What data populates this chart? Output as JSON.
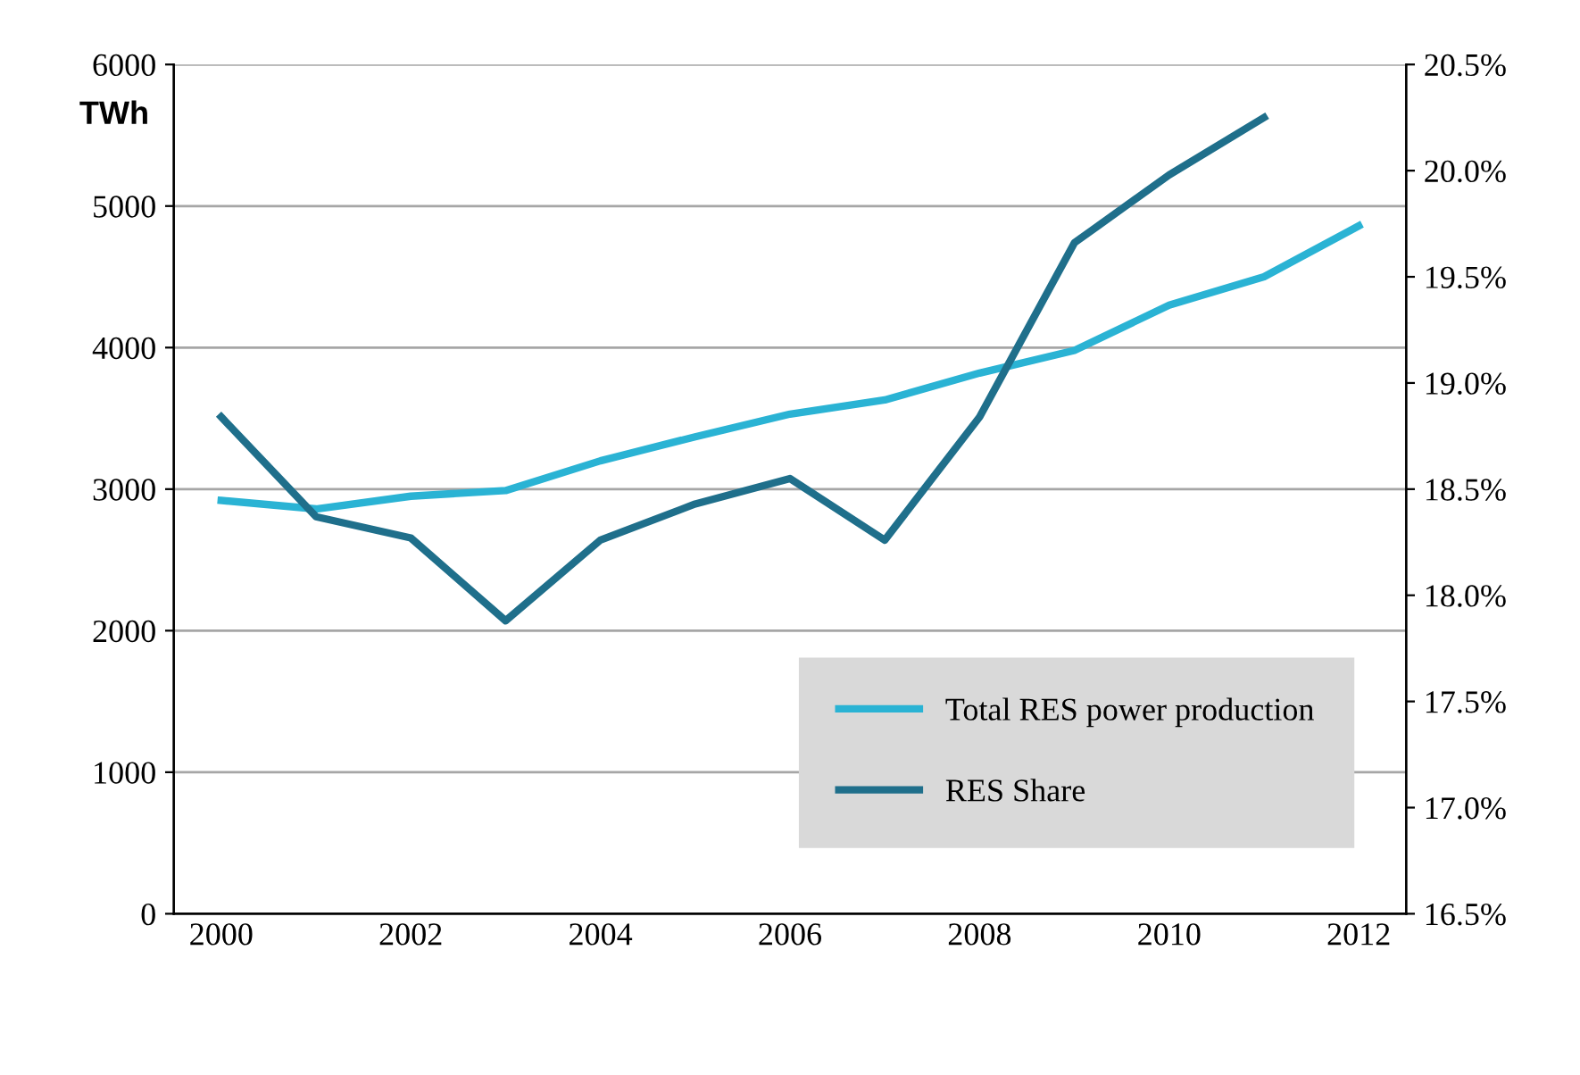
{
  "chart_data": {
    "type": "line",
    "ylabel": "TWh",
    "categories": [
      "2000",
      null,
      "2002",
      null,
      "2004",
      null,
      "2006",
      null,
      "2008",
      null,
      "2010",
      null,
      "2012"
    ],
    "series": [
      {
        "name": "Total RES power production",
        "color": "#2ab3d4",
        "values": [
          2920,
          2860,
          2950,
          2990,
          3200,
          3370,
          3530,
          3630,
          3820,
          3980,
          4300,
          4500,
          4860
        ]
      },
      {
        "name": "RES Share",
        "color": "#1f6f8b",
        "axis": "y2",
        "values": [
          18.84,
          18.37,
          18.27,
          17.88,
          18.26,
          18.43,
          18.55,
          18.26,
          18.84,
          19.66,
          19.98,
          20.25,
          null
        ]
      }
    ],
    "ylim": [
      0,
      6000
    ],
    "yticks": [
      0,
      1000,
      2000,
      3000,
      4000,
      5000,
      6000
    ],
    "y2lim": [
      16.5,
      20.5
    ],
    "y2ticks": [
      {
        "value": 16.5,
        "label": "16.5%"
      },
      {
        "value": 17.0,
        "label": "17.0%"
      },
      {
        "value": 17.5,
        "label": "17.5%"
      },
      {
        "value": 18.0,
        "label": "18.0%"
      },
      {
        "value": 18.5,
        "label": "18.5%"
      },
      {
        "value": 19.0,
        "label": "19.0%"
      },
      {
        "value": 19.5,
        "label": "19.5%"
      },
      {
        "value": 20.0,
        "label": "20.0%"
      },
      {
        "value": 20.5,
        "label": "20.5%"
      }
    ],
    "grid": "y",
    "legend": "bottom right",
    "marker": "none",
    "line_style": "solid"
  }
}
